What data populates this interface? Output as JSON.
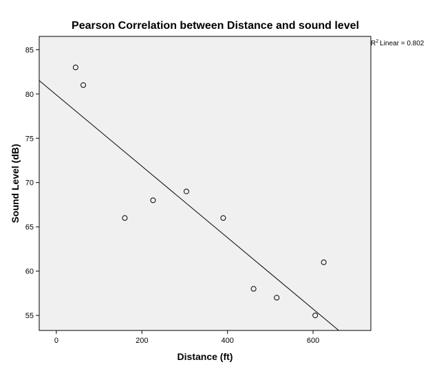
{
  "chart_data": {
    "type": "scatter",
    "title": "Pearson Correlation between Distance and sound level",
    "xlabel": "Distance (ft)",
    "ylabel": "Sound Level (dB)",
    "xlim": [
      -40,
      735
    ],
    "ylim": [
      53.3,
      86.5
    ],
    "xticks": [
      0,
      200,
      400,
      600
    ],
    "yticks": [
      55,
      60,
      65,
      70,
      75,
      80,
      85
    ],
    "grid": false,
    "plot_background": "#f0f0f0",
    "marker": "open-circle",
    "points": [
      {
        "x": 45,
        "y": 83
      },
      {
        "x": 63,
        "y": 81
      },
      {
        "x": 160,
        "y": 66
      },
      {
        "x": 226,
        "y": 68
      },
      {
        "x": 304,
        "y": 69
      },
      {
        "x": 390,
        "y": 66
      },
      {
        "x": 461,
        "y": 58
      },
      {
        "x": 515,
        "y": 57
      },
      {
        "x": 605,
        "y": 55
      },
      {
        "x": 625,
        "y": 61
      }
    ],
    "fit_line": {
      "type": "linear",
      "intercept": 79.9,
      "slope": -0.0403,
      "r2_label": "Linear = 0.802",
      "r2_prefix": "R",
      "r2_superscript": "2"
    }
  }
}
